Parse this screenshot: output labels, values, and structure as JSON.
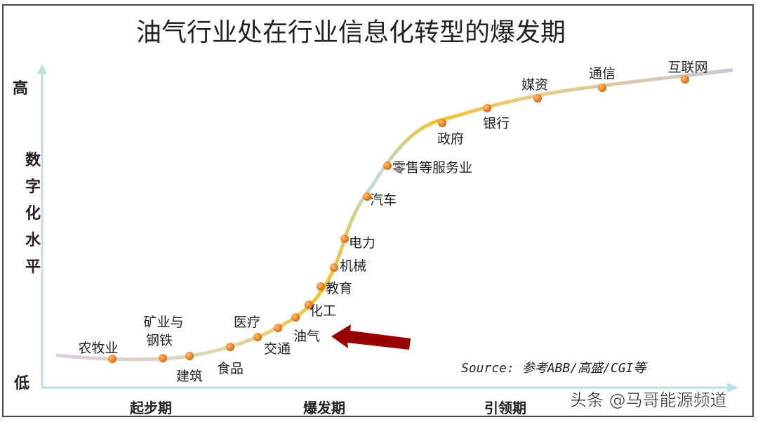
{
  "title": "油气行业处在行业信息化转型的爆发期",
  "y_axis": {
    "high": "高",
    "low": "低",
    "label_chars": [
      "数",
      "字",
      "化",
      "水",
      "平"
    ]
  },
  "stages": [
    "起步期",
    "爆发期",
    "引领期"
  ],
  "industries": [
    {
      "label": [
        "农牧业"
      ]
    },
    {
      "label": [
        "矿业与",
        "钢铁"
      ]
    },
    {
      "label": [
        "建筑"
      ]
    },
    {
      "label": [
        "食品"
      ]
    },
    {
      "label": [
        "医疗"
      ]
    },
    {
      "label": [
        "交通"
      ]
    },
    {
      "label": [
        "油气"
      ],
      "highlighted": true
    },
    {
      "label": [
        "化工"
      ]
    },
    {
      "label": [
        "教育"
      ]
    },
    {
      "label": [
        "机械"
      ]
    },
    {
      "label": [
        "电力"
      ]
    },
    {
      "label": [
        "汽车"
      ]
    },
    {
      "label": [
        "零售等服务业"
      ]
    },
    {
      "label": [
        "政府"
      ]
    },
    {
      "label": [
        "银行"
      ]
    },
    {
      "label": [
        "媒资"
      ]
    },
    {
      "label": [
        "通信"
      ]
    },
    {
      "label": [
        "互联网"
      ]
    }
  ],
  "source": "Source: 参考ABB/高盛/CGI等",
  "watermark": "头条 @马哥能源频道",
  "colors": {
    "axis": "#b9e0e4",
    "point": "#f07a10",
    "arrow": "#9b0000",
    "curve_mid": "#f5c020",
    "curve_end": "#c9c4dc"
  }
}
